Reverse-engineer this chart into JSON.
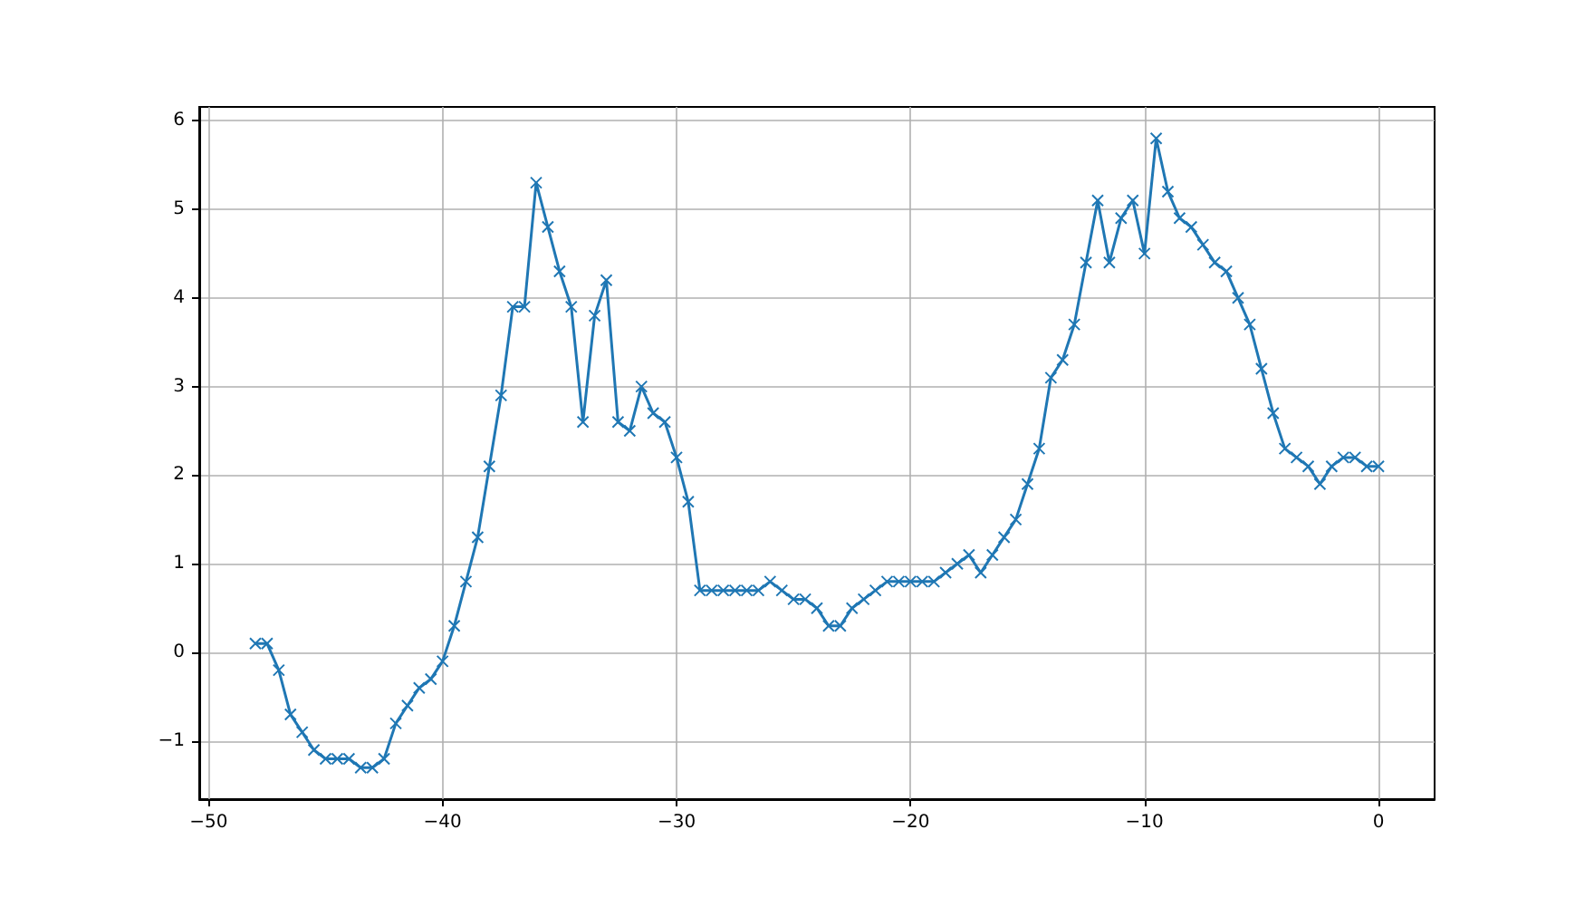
{
  "chart_data": {
    "type": "line",
    "marker": "cross",
    "grid": true,
    "line_style": "solid",
    "xlim": [
      -50.4,
      2.4
    ],
    "ylim": [
      -1.655,
      6.155
    ],
    "xticks": [
      {
        "value": -50,
        "label": "−50"
      },
      {
        "value": -40,
        "label": "−40"
      },
      {
        "value": -30,
        "label": "−30"
      },
      {
        "value": -20,
        "label": "−20"
      },
      {
        "value": -10,
        "label": "−10"
      },
      0
    ],
    "yticks": [
      {
        "value": -1,
        "label": "−1"
      },
      0,
      1,
      2,
      3,
      4,
      5,
      6
    ],
    "series": [
      {
        "color": "#1f77b4",
        "x": [
          -48,
          -47.5,
          -47,
          -46.5,
          -46,
          -45.5,
          -45,
          -44.5,
          -44,
          -43.5,
          -43,
          -42.5,
          -42,
          -41.5,
          -41,
          -40.5,
          -40,
          -39.5,
          -39,
          -38.5,
          -38,
          -37.5,
          -37,
          -36.5,
          -36,
          -35.5,
          -35,
          -34.5,
          -34,
          -33.5,
          -33,
          -32.5,
          -32,
          -31.5,
          -31,
          -30.5,
          -30,
          -29.5,
          -29,
          -28.5,
          -28,
          -27.5,
          -27,
          -26.5,
          -26,
          -25.5,
          -25,
          -24.5,
          -24,
          -23.5,
          -23,
          -22.5,
          -22,
          -21.5,
          -21,
          -20.5,
          -20,
          -19.5,
          -19,
          -18.5,
          -18,
          -17.5,
          -17,
          -16.5,
          -16,
          -15.5,
          -15,
          -14.5,
          -14,
          -13.5,
          -13,
          -12.5,
          -12,
          -11.5,
          -11,
          -10.5,
          -10,
          -9.5,
          -9,
          -8.5,
          -8,
          -7.5,
          -7,
          -6.5,
          -6,
          -5.5,
          -5,
          -4.5,
          -4,
          -3.5,
          -3,
          -2.5,
          -2,
          -1.5,
          -1,
          -0.5,
          0
        ],
        "values": [
          0.1,
          0.1,
          -0.2,
          -0.7,
          -0.9,
          -1.1,
          -1.2,
          -1.2,
          -1.2,
          -1.3,
          -1.3,
          -1.2,
          -0.8,
          -0.6,
          -0.4,
          -0.3,
          -0.1,
          0.3,
          0.8,
          1.3,
          2.1,
          2.9,
          3.9,
          3.9,
          5.3,
          4.8,
          4.3,
          3.9,
          2.6,
          3.8,
          4.2,
          2.6,
          2.5,
          3.0,
          2.7,
          2.6,
          2.2,
          1.7,
          0.7,
          0.7,
          0.7,
          0.7,
          0.7,
          0.7,
          0.8,
          0.7,
          0.6,
          0.6,
          0.5,
          0.3,
          0.3,
          0.5,
          0.6,
          0.7,
          0.8,
          0.8,
          0.8,
          0.8,
          0.8,
          0.9,
          1.0,
          1.1,
          0.9,
          1.1,
          1.3,
          1.5,
          1.9,
          2.3,
          3.1,
          3.3,
          3.7,
          4.4,
          5.1,
          4.4,
          4.9,
          5.1,
          4.5,
          5.8,
          5.2,
          4.9,
          4.8,
          4.6,
          4.4,
          4.3,
          4.0,
          3.7,
          3.2,
          2.7,
          2.3,
          2.2,
          2.1,
          1.9,
          2.1,
          2.2,
          2.2,
          2.1,
          2.1
        ]
      }
    ]
  }
}
